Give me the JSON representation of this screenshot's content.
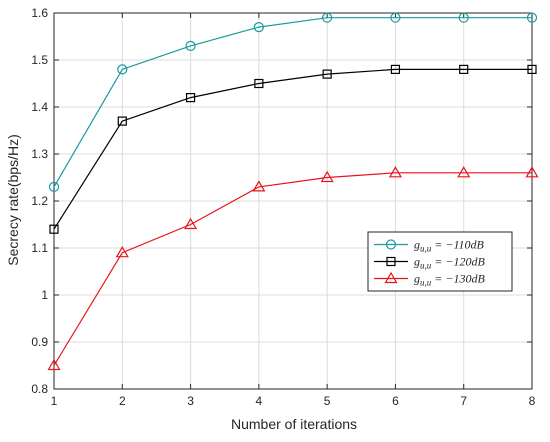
{
  "chart_data": {
    "type": "line",
    "title": "",
    "xlabel": "Number of iterations",
    "ylabel": "Secrecy rate(bps/Hz)",
    "x": [
      1,
      2,
      3,
      4,
      5,
      6,
      7,
      8
    ],
    "xlim": [
      1,
      8
    ],
    "ylim": [
      0.8,
      1.6
    ],
    "xticks": [
      "1",
      "2",
      "3",
      "4",
      "5",
      "6",
      "7",
      "8"
    ],
    "yticks": [
      "0.8",
      "0.9",
      "1",
      "1.1",
      "1.2",
      "1.3",
      "1.4",
      "1.5",
      "1.6"
    ],
    "grid": true,
    "legend_position": "right",
    "series": [
      {
        "name": "g_{u,u} = −110dB",
        "label_main": "g",
        "label_sub": "u,u",
        "label_rest": " = −110dB",
        "color": "#1a9ba0",
        "marker": "circle",
        "values": [
          1.23,
          1.48,
          1.53,
          1.57,
          1.59,
          1.59,
          1.59,
          1.59
        ]
      },
      {
        "name": "g_{u,u} = −120dB",
        "label_main": "g",
        "label_sub": "u,u",
        "label_rest": " = −120dB",
        "color": "#000000",
        "marker": "square",
        "values": [
          1.14,
          1.37,
          1.42,
          1.45,
          1.47,
          1.48,
          1.48,
          1.48
        ]
      },
      {
        "name": "g_{u,u} = −130dB",
        "label_main": "g",
        "label_sub": "u,u",
        "label_rest": " = −130dB",
        "color": "#e8141a",
        "marker": "triangle",
        "values": [
          0.85,
          1.09,
          1.15,
          1.23,
          1.25,
          1.26,
          1.26,
          1.26
        ]
      }
    ]
  }
}
